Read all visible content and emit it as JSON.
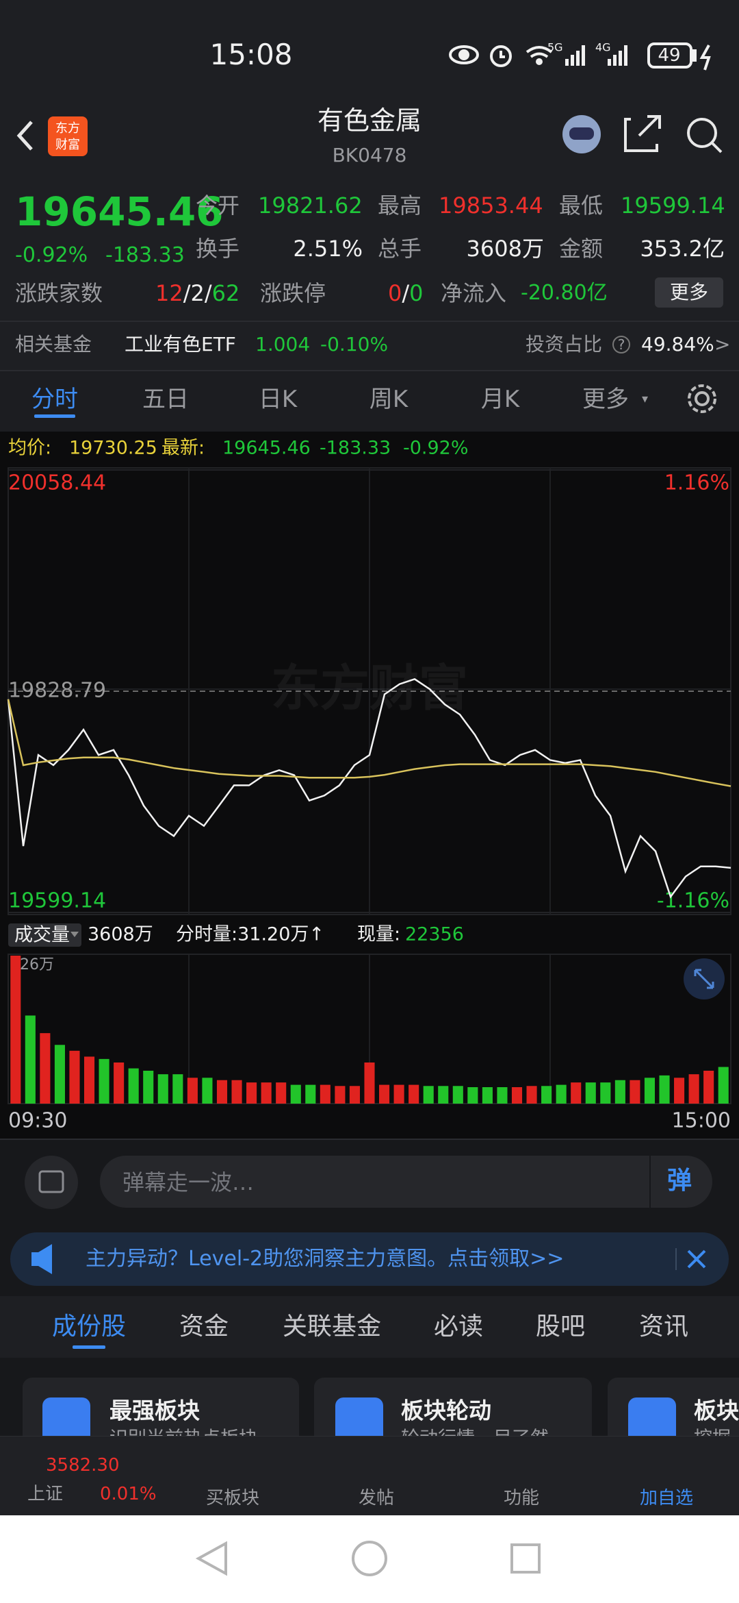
{
  "status_bar": {
    "time": "15:08",
    "battery": "49"
  },
  "header": {
    "title": "有色金属",
    "code": "BK0478"
  },
  "quote": {
    "price": "19645.46",
    "change_pct": "-0.92%",
    "change": "-183.33",
    "open": {
      "label": "今开",
      "value": "19821.62"
    },
    "high": {
      "label": "最高",
      "value": "19853.44"
    },
    "low": {
      "label": "最低",
      "value": "19599.14"
    },
    "turnover": {
      "label": "换手",
      "value": "2.51%"
    },
    "volume": {
      "label": "总手",
      "value": "3608万"
    },
    "amount": {
      "label": "金额",
      "value": "353.2亿"
    },
    "breadth": {
      "label": "涨跌家数",
      "up": "12",
      "flat": "2",
      "down": "62",
      "separator": "/"
    },
    "limits": {
      "label": "涨跌停",
      "up": "0",
      "down": "0",
      "separator": "/"
    },
    "net_inflow": {
      "label": "净流入",
      "value": "-20.80亿"
    },
    "more_button": "更多"
  },
  "fund": {
    "label": "相关基金",
    "name": "工业有色ETF",
    "price": "1.004",
    "change": "-0.10%",
    "share_label": "投资占比",
    "share": "49.84%",
    "arrow": ">"
  },
  "tabs": [
    "分时",
    "五日",
    "日K",
    "周K",
    "月K",
    "更多"
  ],
  "info": {
    "avg_label": "均价:",
    "avg": "19730.25",
    "last_label": "最新:",
    "last": "19645.46",
    "change": "-183.33",
    "change_pct": "-0.92%"
  },
  "chart_data": [
    {
      "type": "line",
      "watermark": "东方财富",
      "ylim": [
        19599.14,
        20058.44
      ],
      "yticks": [
        19599.14,
        19828.79,
        20058.44
      ],
      "y2lim": [
        -1.16,
        1.16
      ],
      "y2ticks": [
        {
          "value": -1.16,
          "label": "-1.16%"
        },
        {
          "value": 1.16,
          "label": "1.16%"
        }
      ],
      "up_color": "#f0302c",
      "down_color": "#1fc73a",
      "mid_color": "#9a9a9a",
      "series": [
        {
          "color": "#f2f2f2",
          "values": [
            19820.4,
            19668.0,
            19762.6,
            19752.1,
            19767.8,
            19788.9,
            19762.6,
            19767.8,
            19741.6,
            19710.0,
            19689.0,
            19678.5,
            19699.5,
            19689.0,
            19710.0,
            19731.1,
            19731.1,
            19741.6,
            19746.8,
            19741.6,
            19715.3,
            19720.5,
            19731.1,
            19752.1,
            19762.6,
            19825.6,
            19836.2,
            19841.4,
            19830.9,
            19815.1,
            19804.6,
            19783.6,
            19757.3,
            19752.1,
            19762.6,
            19767.8,
            19757.3,
            19754.2,
            19757.3,
            19720.5,
            19699.5,
            19641.7,
            19678.5,
            19662.7,
            19615.4,
            19636.5,
            19647.0,
            19647.0,
            19645.46
          ]
        },
        {
          "color": "#d9c35c",
          "values": [
            19820.4,
            19752,
            19755,
            19757,
            19759,
            19760,
            19760,
            19760,
            19758,
            19755,
            19752,
            19749,
            19747,
            19745,
            19743,
            19742,
            19741,
            19741,
            19741,
            19740,
            19739,
            19739,
            19739,
            19739,
            19740,
            19742,
            19745,
            19748,
            19750,
            19752,
            19753,
            19753,
            19753,
            19753,
            19753,
            19753,
            19753,
            19753,
            19753,
            19752,
            19751,
            19749,
            19747,
            19745,
            19742,
            19739,
            19736,
            19733,
            19730.25
          ]
        }
      ]
    },
    {
      "type": "bar",
      "categories": [
        "09:30",
        null,
        null,
        null,
        null,
        null,
        null,
        null,
        null,
        null,
        null,
        null,
        null,
        null,
        null,
        null,
        null,
        null,
        null,
        null,
        null,
        null,
        null,
        null,
        null,
        null,
        null,
        null,
        null,
        null,
        null,
        null,
        null,
        null,
        null,
        null,
        null,
        null,
        null,
        null,
        null,
        null,
        null,
        null,
        null,
        null,
        null,
        null,
        "15:00"
      ],
      "values": [
        126,
        75,
        60,
        50,
        45,
        40,
        38,
        35,
        30,
        28,
        25,
        25,
        22,
        22,
        20,
        20,
        18,
        18,
        18,
        16,
        16,
        16,
        15,
        15,
        35,
        16,
        16,
        16,
        15,
        15,
        15,
        14,
        14,
        14,
        14,
        15,
        15,
        16,
        18,
        18,
        18,
        20,
        20,
        22,
        24,
        22,
        25,
        28,
        31.2
      ],
      "ylim": [
        0,
        126
      ],
      "yticks": [
        {
          "value": 126,
          "label": "126万"
        }
      ],
      "up_color": "#e0231f",
      "down_color": "#22c42a"
    }
  ],
  "volume_bar": {
    "selector": "成交量",
    "total": "3608万",
    "minute": "分时量:31.20万↑",
    "current_label": "现量:",
    "current": "22356"
  },
  "comment": {
    "placeholder": "弹幕走一波…",
    "button": "弹"
  },
  "banner": {
    "text": "主力异动？Level-2助您洞察主力意图。点击领取>>"
  },
  "section_tabs": [
    "成份股",
    "资金",
    "关联基金",
    "必读",
    "股吧",
    "资讯"
  ],
  "cards": [
    {
      "title": "最强板块",
      "subtitle": "识别当前热点板块"
    },
    {
      "title": "板块轮动",
      "subtitle": "轮动行情一目了然"
    },
    {
      "title": "板块",
      "subtitle": "挖掘"
    }
  ],
  "bottom_nav": {
    "index": {
      "value": "3582.30",
      "name": "上证",
      "change": "0.01%"
    },
    "items": [
      "买板块",
      "发帖",
      "功能",
      "加自选"
    ]
  }
}
